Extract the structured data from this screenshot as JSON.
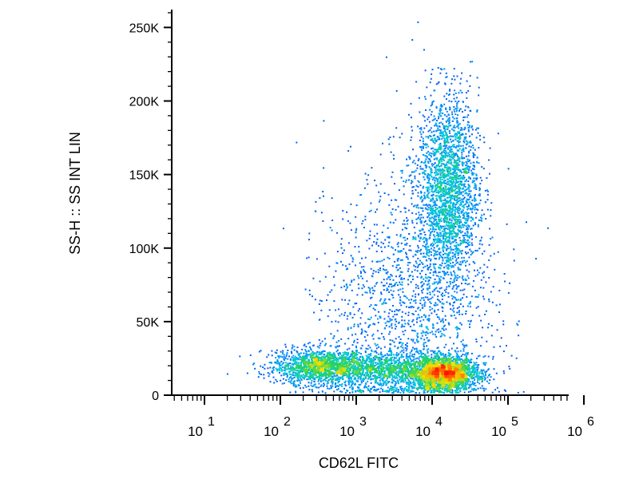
{
  "chart_data": {
    "type": "scatter",
    "subtype": "flow-cytometry-density-dot-plot",
    "xlabel": "CD62L FITC",
    "ylabel": "SS-H :: SS INT LIN",
    "x_scale": "log",
    "y_scale": "linear",
    "xlim": [
      1,
      1000000
    ],
    "ylim": [
      0,
      262144
    ],
    "x_ticks": [
      {
        "base": "10",
        "exp": "1",
        "value": 10
      },
      {
        "base": "10",
        "exp": "2",
        "value": 100
      },
      {
        "base": "10",
        "exp": "3",
        "value": 1000
      },
      {
        "base": "10",
        "exp": "4",
        "value": 10000
      },
      {
        "base": "10",
        "exp": "5",
        "value": 100000
      },
      {
        "base": "10",
        "exp": "6",
        "value": 1000000
      }
    ],
    "y_ticks": [
      {
        "label": "0",
        "value": 0
      },
      {
        "label": "50K",
        "value": 50000
      },
      {
        "label": "100K",
        "value": 100000
      },
      {
        "label": "150K",
        "value": 150000
      },
      {
        "label": "200K",
        "value": 200000
      },
      {
        "label": "250K",
        "value": 250000
      }
    ],
    "grid": false,
    "populations": [
      {
        "x_log_center": 2.5,
        "y_center": 20000,
        "x_log_spread": 0.3,
        "y_spread": 6000,
        "weight": 0.16
      },
      {
        "x_log_center": 3.4,
        "y_center": 18000,
        "x_log_spread": 0.45,
        "y_spread": 6000,
        "weight": 0.14
      },
      {
        "x_log_center": 4.15,
        "y_center": 15000,
        "x_log_spread": 0.22,
        "y_spread": 5500,
        "weight": 0.26
      },
      {
        "x_log_center": 4.2,
        "y_center": 140000,
        "x_log_spread": 0.2,
        "y_spread": 32000,
        "weight": 0.26
      },
      {
        "x_log_center": 3.7,
        "y_center": 60000,
        "x_log_spread": 0.55,
        "y_spread": 45000,
        "weight": 0.18
      }
    ],
    "colors": {
      "low_density": "#1010c8",
      "mid_low": "#00a8ff",
      "mid": "#20d060",
      "mid_high": "#f0e000",
      "high_density": "#ff2000",
      "axis": "#000000"
    }
  }
}
